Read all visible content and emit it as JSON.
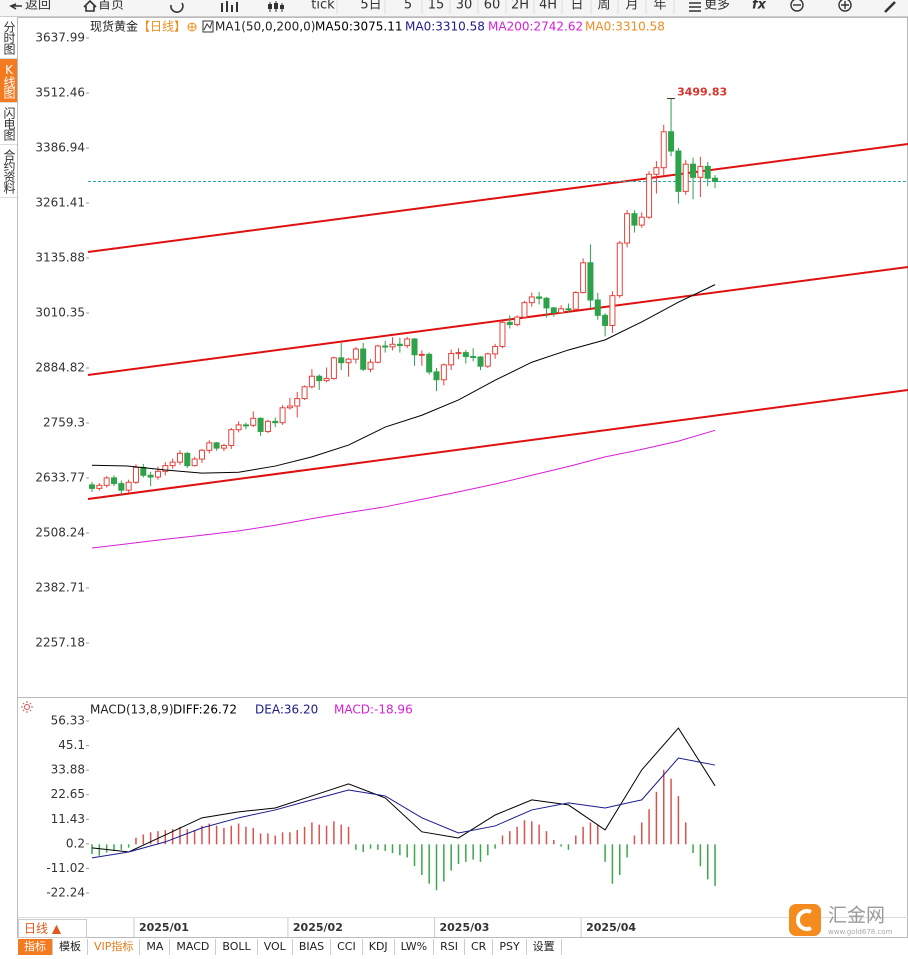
{
  "toolbar": {
    "back": "返回",
    "home": "首页",
    "items": [
      "tick",
      "5日",
      "5",
      "15",
      "30",
      "60",
      "2H",
      "4H",
      "日",
      "周",
      "月",
      "年"
    ],
    "more": "更多",
    "fx": "fx"
  },
  "sidebar": [
    "分时图",
    "K线图",
    "闪电图",
    "合约资料"
  ],
  "chart_data": [
    {
      "type": "candlestick",
      "title": "现货黄金",
      "period": "【日线】",
      "indicator": "MA1(50,0,200,0)",
      "legend": [
        {
          "text": "MA50:3075.11",
          "color": "#000000"
        },
        {
          "text": "MA0:3310.58",
          "color": "#1a1a8c"
        },
        {
          "text": "MA200:2742.62",
          "color": "#d81ed8"
        },
        {
          "text": "MA0:3310.58",
          "color": "#f08c1e"
        }
      ],
      "up_color": "#e8413c",
      "down_color": "#2ca24a",
      "ylim": [
        2257.18,
        3637.99
      ],
      "yticks": [
        2257.18,
        2382.71,
        2508.24,
        2633.77,
        2759.3,
        2884.82,
        3010.35,
        3135.88,
        3261.41,
        3386.94,
        3512.46,
        3637.99
      ],
      "categories": [
        null,
        null,
        null,
        null,
        null,
        null,
        "2025/01",
        null,
        null,
        null,
        null,
        null,
        null,
        null,
        null,
        null,
        null,
        null,
        null,
        null,
        null,
        null,
        null,
        null,
        null,
        null,
        null,
        "2025/02",
        null,
        null,
        null,
        null,
        null,
        null,
        null,
        null,
        null,
        null,
        null,
        null,
        null,
        null,
        null,
        null,
        null,
        null,
        null,
        "2025/03",
        null,
        null,
        null,
        null,
        null,
        null,
        null,
        null,
        null,
        null,
        null,
        null,
        null,
        null,
        null,
        null,
        null,
        null,
        null,
        "2025/04",
        null,
        null,
        null,
        null,
        null,
        null,
        null,
        null,
        null,
        null,
        null,
        null,
        null,
        null,
        null,
        null,
        null,
        null
      ],
      "open": [
        2618,
        2610,
        2617,
        2634,
        2621,
        2606,
        2624,
        2658,
        2640,
        2636,
        2649,
        2662,
        2670,
        2690,
        2662,
        2677,
        2697,
        2714,
        2702,
        2708,
        2744,
        2755,
        2754,
        2770,
        2740,
        2763,
        2760,
        2794,
        2798,
        2815,
        2842,
        2866,
        2856,
        2861,
        2908,
        2897,
        2905,
        2928,
        2882,
        2898,
        2935,
        2933,
        2939,
        2936,
        2951,
        2915,
        2916,
        2876,
        2858,
        2892,
        2918,
        2920,
        2911,
        2910,
        2889,
        2917,
        2934,
        2989,
        2984,
        3001,
        3034,
        3047,
        3044,
        3022,
        3011,
        3020,
        3019,
        3057,
        3125,
        3040,
        3005,
        2982,
        3050,
        3170,
        3237,
        3211,
        3229,
        3327,
        3342,
        3424,
        3380,
        3288,
        3350,
        3320,
        3345,
        3318
      ],
      "high": [
        2625,
        2622,
        2638,
        2640,
        2628,
        2630,
        2665,
        2666,
        2648,
        2660,
        2670,
        2678,
        2697,
        2693,
        2682,
        2700,
        2720,
        2716,
        2712,
        2748,
        2763,
        2760,
        2786,
        2772,
        2767,
        2772,
        2800,
        2817,
        2830,
        2845,
        2882,
        2870,
        2886,
        2911,
        2942,
        2908,
        2933,
        2942,
        2905,
        2938,
        2947,
        2955,
        2954,
        2956,
        2953,
        2925,
        2920,
        2885,
        2895,
        2927,
        2930,
        2926,
        2930,
        2912,
        2920,
        2940,
        2992,
        3005,
        3005,
        3038,
        3057,
        3058,
        3047,
        3024,
        3028,
        3032,
        3060,
        3135,
        3167,
        3056,
        3010,
        3060,
        3175,
        3245,
        3245,
        3240,
        3334,
        3357,
        3440,
        3499.83,
        3387,
        3360,
        3365,
        3367,
        3355,
        3325
      ],
      "low": [
        2602,
        2605,
        2612,
        2615,
        2596,
        2600,
        2620,
        2635,
        2615,
        2630,
        2640,
        2655,
        2664,
        2656,
        2660,
        2668,
        2690,
        2696,
        2695,
        2700,
        2738,
        2745,
        2750,
        2730,
        2736,
        2750,
        2755,
        2790,
        2772,
        2812,
        2838,
        2835,
        2852,
        2858,
        2880,
        2865,
        2895,
        2878,
        2875,
        2895,
        2920,
        2925,
        2920,
        2930,
        2890,
        2890,
        2870,
        2832,
        2845,
        2880,
        2905,
        2895,
        2900,
        2880,
        2885,
        2906,
        2930,
        2975,
        2980,
        2998,
        3025,
        3030,
        3000,
        3002,
        3008,
        3012,
        3016,
        3055,
        3020,
        2995,
        2957,
        2965,
        3045,
        3160,
        3194,
        3205,
        3225,
        3283,
        3325,
        3368,
        3260,
        3280,
        3270,
        3275,
        3300,
        3295
      ],
      "close": [
        2610,
        2617,
        2634,
        2621,
        2606,
        2624,
        2658,
        2640,
        2636,
        2649,
        2662,
        2670,
        2690,
        2662,
        2677,
        2697,
        2714,
        2702,
        2708,
        2744,
        2755,
        2754,
        2770,
        2740,
        2763,
        2760,
        2794,
        2798,
        2815,
        2842,
        2866,
        2856,
        2861,
        2908,
        2897,
        2905,
        2928,
        2882,
        2898,
        2935,
        2933,
        2939,
        2936,
        2951,
        2915,
        2916,
        2876,
        2858,
        2892,
        2918,
        2920,
        2911,
        2910,
        2889,
        2917,
        2934,
        2989,
        2984,
        3001,
        3034,
        3047,
        3044,
        3022,
        3011,
        3020,
        3019,
        3057,
        3125,
        3040,
        3005,
        2982,
        3050,
        3170,
        3237,
        3211,
        3229,
        3327,
        3342,
        3424,
        3380,
        3288,
        3350,
        3320,
        3345,
        3318,
        3310.58
      ],
      "series": [
        {
          "color": "#000000",
          "x": [
            0,
            5,
            10,
            15,
            20,
            25,
            30,
            35,
            40,
            45,
            50,
            55,
            60,
            65,
            70,
            75,
            80,
            85
          ],
          "values": [
            2663,
            2661,
            2652,
            2645,
            2647,
            2661,
            2682,
            2709,
            2750,
            2777,
            2812,
            2857,
            2898,
            2926,
            2949,
            2990,
            3035,
            3075.11
          ]
        },
        {
          "color": "#d81ed8",
          "x": [
            0,
            5,
            10,
            15,
            20,
            25,
            30,
            35,
            40,
            45,
            50,
            55,
            60,
            65,
            70,
            75,
            80,
            85
          ],
          "values": [
            2474,
            2484,
            2494,
            2503,
            2513,
            2526,
            2541,
            2555,
            2568,
            2585,
            2602,
            2620,
            2640,
            2660,
            2682,
            2699,
            2718,
            2742.62
          ]
        }
      ]
    },
    {
      "type": "macd",
      "title": "MACD(13,8,9)",
      "legend": [
        {
          "text": "DIFF:26.72",
          "color": "#000000"
        },
        {
          "text": "DEA:36.20",
          "color": "#1a1a8c"
        },
        {
          "text": "MACD:-18.96",
          "color": "#d81ed8"
        }
      ],
      "ylim": [
        -22.24,
        56.33
      ],
      "yticks": [
        -22.24,
        -11.02,
        0.2,
        11.43,
        22.65,
        33.88,
        45.1,
        56.33
      ],
      "up_color": "#d9534f",
      "down_color": "#3aa84a",
      "histogram": [
        -4.5,
        -5.2,
        -3.8,
        -3.0,
        -2.5,
        -1.5,
        3.0,
        4.5,
        5.5,
        6.0,
        6.5,
        7.0,
        8.0,
        7.0,
        6.5,
        8.5,
        9.5,
        8.5,
        7.5,
        8.5,
        9.5,
        8.0,
        7.5,
        5.0,
        5.0,
        4.0,
        5.5,
        5.5,
        6.5,
        8.0,
        10.0,
        9.0,
        8.5,
        10.5,
        9.0,
        8.0,
        -2.5,
        -3.5,
        -2.0,
        -2.5,
        -3.0,
        -4.0,
        -5.0,
        -6.0,
        -10.0,
        -14.0,
        -18.0,
        -21.0,
        -17.0,
        -12.0,
        -9.0,
        -8.0,
        -7.0,
        -8.0,
        -5.0,
        -2.0,
        4.0,
        6.0,
        8.0,
        11.0,
        10.5,
        9.0,
        6.0,
        2.0,
        -1.0,
        -2.5,
        4.0,
        8.0,
        10.0,
        9.0,
        -8.0,
        -18.0,
        -14.0,
        -6.0,
        4.0,
        10.0,
        16.0,
        24.0,
        34.0,
        30.0,
        22.0,
        10.0,
        -4.0,
        -10.0,
        -16.0,
        -18.96
      ],
      "series": [
        {
          "color": "#000000",
          "x": [
            0,
            5,
            10,
            15,
            20,
            25,
            30,
            35,
            40,
            45,
            50,
            55,
            60,
            65,
            70,
            75,
            80,
            85
          ],
          "values": [
            -1.6,
            -3.5,
            4.3,
            12.1,
            14.8,
            16.6,
            22.1,
            27.6,
            21.2,
            5.7,
            2.9,
            13.4,
            20.3,
            18.0,
            6.6,
            34.0,
            53.1,
            26.72
          ]
        },
        {
          "color": "#1a1a8c",
          "x": [
            0,
            5,
            10,
            15,
            20,
            25,
            30,
            35,
            40,
            45,
            50,
            55,
            60,
            65,
            70,
            75,
            80,
            85
          ],
          "values": [
            -6.2,
            -3.5,
            1.1,
            7.5,
            12.1,
            15.7,
            20.3,
            24.8,
            22.1,
            12.1,
            5.2,
            8.4,
            15.7,
            18.9,
            16.6,
            20.3,
            39.4,
            36.2
          ]
        }
      ]
    }
  ],
  "bottom": {
    "period": "日线 ▲",
    "tabs": [
      "指标",
      "模板",
      "VIP指标",
      "MA",
      "MACD",
      "BOLL",
      "VOL",
      "BIAS",
      "CCI",
      "KDJ",
      "LW%",
      "RSI",
      "CR",
      "PSY",
      "设置"
    ]
  },
  "watermark": {
    "name": "汇金网",
    "url": "www.gold678.com"
  }
}
